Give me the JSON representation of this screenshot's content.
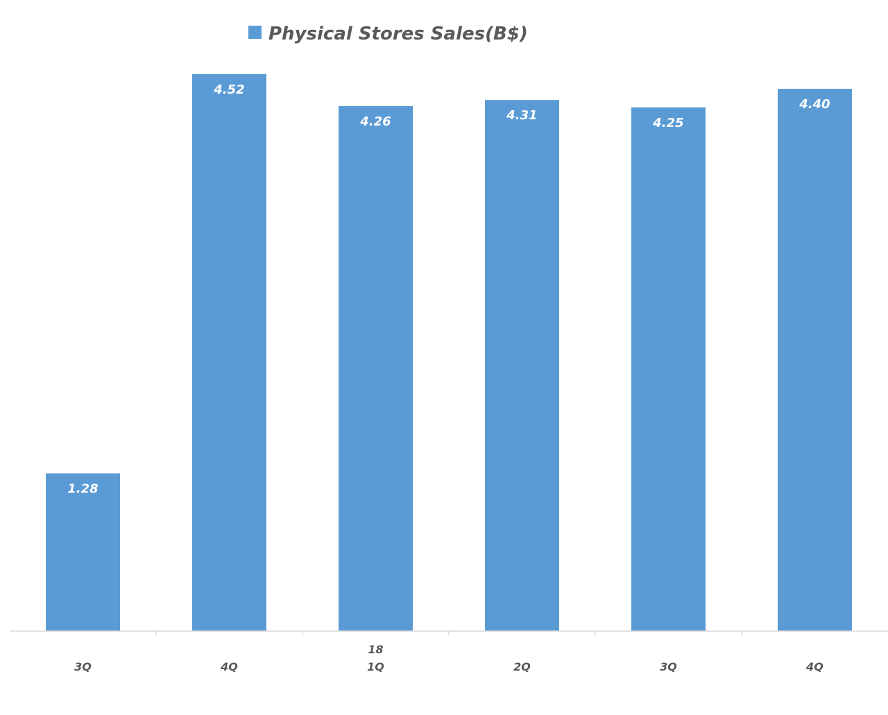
{
  "chart_data": {
    "type": "bar",
    "categories": [
      "3Q",
      "4Q",
      "1Q",
      "2Q",
      "3Q",
      "4Q"
    ],
    "group_labels": [
      {
        "label": "18",
        "category_index": 2
      }
    ],
    "series": [
      {
        "name": "Physical Stores Sales(B$)",
        "values": [
          1.28,
          4.52,
          4.26,
          4.31,
          4.25,
          4.4
        ],
        "data_labels": [
          "1.28",
          "4.52",
          "4.26",
          "4.31",
          "4.25",
          "4.40"
        ],
        "color": "#5B9BD5"
      }
    ],
    "ylim": [
      0,
      5
    ],
    "grid": false,
    "legend_position": "top-center"
  },
  "colors": {
    "bar": "#5B9BD5",
    "axis": "#D9D9D9",
    "label_text": "#595959",
    "data_label_text": "#FFFFFF"
  }
}
